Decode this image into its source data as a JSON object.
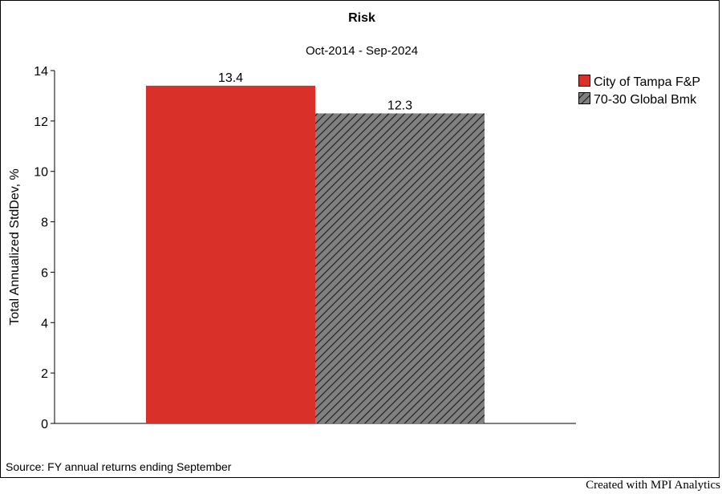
{
  "chart_data": {
    "type": "bar",
    "title": "Risk",
    "subtitle": "Oct-2014 - Sep-2024",
    "xlabel": "",
    "ylabel": "Total Annualized StdDev, %",
    "ylim": [
      0,
      14
    ],
    "yticks": [
      0,
      2,
      4,
      6,
      8,
      10,
      12,
      14
    ],
    "grid": false,
    "legend_position": "top-right",
    "series": [
      {
        "name": "City of Tampa F&P",
        "values": [
          13.4
        ],
        "label": "13.4",
        "color": "#d9312a",
        "pattern": "solid"
      },
      {
        "name": "70-30 Global Bmk",
        "values": [
          12.3
        ],
        "label": "12.3",
        "color": "#808080",
        "pattern": "hatched"
      }
    ]
  },
  "footer": {
    "source": "Source: FY annual returns ending September",
    "credit": "Created with MPI Analytics"
  }
}
